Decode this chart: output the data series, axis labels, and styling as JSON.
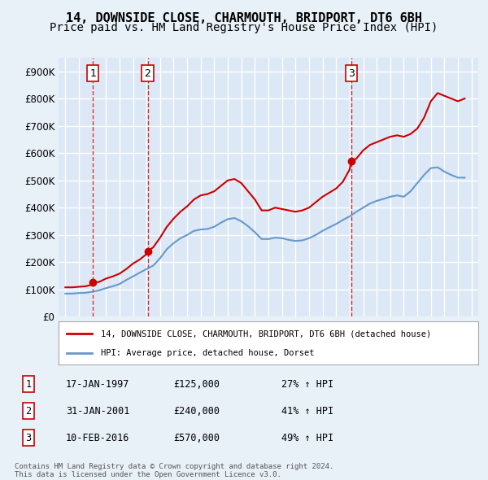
{
  "title": "14, DOWNSIDE CLOSE, CHARMOUTH, BRIDPORT, DT6 6BH",
  "subtitle": "Price paid vs. HM Land Registry's House Price Index (HPI)",
  "title_fontsize": 11,
  "subtitle_fontsize": 10,
  "background_color": "#e8f0f8",
  "plot_bg_color": "#dce8f5",
  "grid_color": "#ffffff",
  "ylabel_ticks": [
    "£0",
    "£100K",
    "£200K",
    "£300K",
    "£400K",
    "£500K",
    "£600K",
    "£700K",
    "£800K",
    "£900K"
  ],
  "ytick_values": [
    0,
    100000,
    200000,
    300000,
    400000,
    500000,
    600000,
    700000,
    800000,
    900000
  ],
  "ylim": [
    0,
    950000
  ],
  "xlim_start": 1994.5,
  "xlim_end": 2025.5,
  "sale_dates": [
    1997.04,
    2001.08,
    2016.11
  ],
  "sale_prices": [
    125000,
    240000,
    570000
  ],
  "sale_labels": [
    "1",
    "2",
    "3"
  ],
  "red_line_color": "#cc0000",
  "blue_line_color": "#6699cc",
  "dashed_line_color": "#cc0000",
  "marker_color": "#cc0000",
  "legend_line1": "14, DOWNSIDE CLOSE, CHARMOUTH, BRIDPORT, DT6 6BH (detached house)",
  "legend_line2": "HPI: Average price, detached house, Dorset",
  "table_rows": [
    [
      "1",
      "17-JAN-1997",
      "£125,000",
      "27% ↑ HPI"
    ],
    [
      "2",
      "31-JAN-2001",
      "£240,000",
      "41% ↑ HPI"
    ],
    [
      "3",
      "10-FEB-2016",
      "£570,000",
      "49% ↑ HPI"
    ]
  ],
  "footer_text": "Contains HM Land Registry data © Crown copyright and database right 2024.\nThis data is licensed under the Open Government Licence v3.0.",
  "red_hpi_data": {
    "years": [
      1995.0,
      1995.5,
      1996.0,
      1996.5,
      1997.0,
      1997.04,
      1997.5,
      1998.0,
      1998.5,
      1999.0,
      1999.5,
      2000.0,
      2000.5,
      2001.0,
      2001.08,
      2001.5,
      2002.0,
      2002.5,
      2003.0,
      2003.5,
      2004.0,
      2004.5,
      2005.0,
      2005.5,
      2006.0,
      2006.5,
      2007.0,
      2007.5,
      2008.0,
      2008.5,
      2009.0,
      2009.5,
      2010.0,
      2010.5,
      2011.0,
      2011.5,
      2012.0,
      2012.5,
      2013.0,
      2013.5,
      2014.0,
      2014.5,
      2015.0,
      2015.5,
      2016.0,
      2016.11,
      2016.5,
      2017.0,
      2017.5,
      2018.0,
      2018.5,
      2019.0,
      2019.5,
      2020.0,
      2020.5,
      2021.0,
      2021.5,
      2022.0,
      2022.5,
      2023.0,
      2023.5,
      2024.0,
      2024.5
    ],
    "values": [
      108000,
      108000,
      110000,
      112000,
      118000,
      125000,
      128000,
      140000,
      148000,
      158000,
      175000,
      195000,
      210000,
      230000,
      240000,
      255000,
      290000,
      330000,
      360000,
      385000,
      405000,
      430000,
      445000,
      450000,
      460000,
      480000,
      500000,
      505000,
      490000,
      460000,
      430000,
      390000,
      390000,
      400000,
      395000,
      390000,
      385000,
      390000,
      400000,
      420000,
      440000,
      455000,
      470000,
      495000,
      540000,
      570000,
      580000,
      610000,
      630000,
      640000,
      650000,
      660000,
      665000,
      660000,
      670000,
      690000,
      730000,
      790000,
      820000,
      810000,
      800000,
      790000,
      800000
    ]
  },
  "blue_hpi_data": {
    "years": [
      1995.0,
      1995.5,
      1996.0,
      1996.5,
      1997.0,
      1997.5,
      1998.0,
      1998.5,
      1999.0,
      1999.5,
      2000.0,
      2000.5,
      2001.0,
      2001.5,
      2002.0,
      2002.5,
      2003.0,
      2003.5,
      2004.0,
      2004.5,
      2005.0,
      2005.5,
      2006.0,
      2006.5,
      2007.0,
      2007.5,
      2008.0,
      2008.5,
      2009.0,
      2009.5,
      2010.0,
      2010.5,
      2011.0,
      2011.5,
      2012.0,
      2012.5,
      2013.0,
      2013.5,
      2014.0,
      2014.5,
      2015.0,
      2015.5,
      2016.0,
      2016.5,
      2017.0,
      2017.5,
      2018.0,
      2018.5,
      2019.0,
      2019.5,
      2020.0,
      2020.5,
      2021.0,
      2021.5,
      2022.0,
      2022.5,
      2023.0,
      2023.5,
      2024.0,
      2024.5
    ],
    "values": [
      85000,
      85000,
      87000,
      88000,
      92000,
      97000,
      105000,
      112000,
      120000,
      135000,
      148000,
      162000,
      175000,
      188000,
      215000,
      248000,
      270000,
      288000,
      300000,
      315000,
      320000,
      322000,
      330000,
      345000,
      358000,
      362000,
      350000,
      332000,
      310000,
      285000,
      285000,
      290000,
      288000,
      282000,
      278000,
      280000,
      288000,
      300000,
      315000,
      328000,
      340000,
      355000,
      368000,
      385000,
      400000,
      415000,
      425000,
      432000,
      440000,
      445000,
      440000,
      460000,
      490000,
      520000,
      545000,
      548000,
      532000,
      520000,
      510000,
      510000
    ]
  }
}
